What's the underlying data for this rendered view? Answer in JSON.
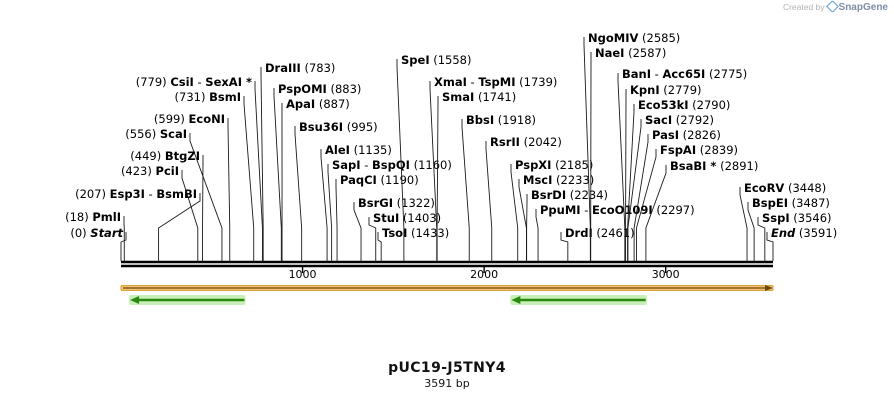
{
  "credit": {
    "prefix": "Created by",
    "brand": "SnapGene"
  },
  "plasmid": {
    "name": "pUC19-J5TNY4",
    "length_label": "3591 bp",
    "length": 3591
  },
  "colors": {
    "backbone": "#000000",
    "feature_bar": "#f5c16c",
    "feature_bar_edge": "#d9a13b",
    "arrow_fill": "#2a8a10",
    "arrow_glow": "#c9efb8"
  },
  "axis_ticks": [
    {
      "value": 1000,
      "label": "1000"
    },
    {
      "value": 2000,
      "label": "2000"
    },
    {
      "value": 3000,
      "label": "3000"
    }
  ],
  "features": [
    {
      "name": "origin-feature",
      "start": 0,
      "end": 3591,
      "dir": "fwd",
      "row": 0
    },
    {
      "name": "green-feature-1",
      "start": 50,
      "end": 680,
      "dir": "rev",
      "row": 1
    },
    {
      "name": "green-feature-2",
      "start": 2150,
      "end": 2890,
      "dir": "rev",
      "row": 1
    }
  ],
  "sites": [
    {
      "label": "Start",
      "pos": 0,
      "num": "(0)",
      "side": "left",
      "italic": true
    },
    {
      "label": "PmlI",
      "pos": 18,
      "num": "(18)",
      "side": "left"
    },
    {
      "label": "Esp3I",
      "label2": "BsmBI",
      "pos": 207,
      "num": "(207)",
      "side": "left"
    },
    {
      "label": "PciI",
      "pos": 423,
      "num": "(423)",
      "side": "left"
    },
    {
      "label": "BtgZI",
      "pos": 449,
      "num": "(449)",
      "side": "left"
    },
    {
      "label": "ScaI",
      "pos": 556,
      "num": "(556)",
      "side": "left"
    },
    {
      "label": "EcoNI",
      "pos": 599,
      "num": "(599)",
      "side": "left"
    },
    {
      "label": "BsmI",
      "pos": 731,
      "num": "(731)",
      "side": "left"
    },
    {
      "label": "CsiI",
      "label2": "SexAI *",
      "pos": 779,
      "num": "(779)",
      "side": "left"
    },
    {
      "label": "DraIII",
      "pos": 783,
      "num": "(783)",
      "side": "right"
    },
    {
      "label": "PspOMI",
      "pos": 883,
      "num": "(883)",
      "side": "right"
    },
    {
      "label": "ApaI",
      "pos": 887,
      "num": "(887)",
      "side": "right"
    },
    {
      "label": "Bsu36I",
      "pos": 995,
      "num": "(995)",
      "side": "right"
    },
    {
      "label": "AleI",
      "pos": 1135,
      "num": "(1135)",
      "side": "right"
    },
    {
      "label": "SapI",
      "label2": "BspQI",
      "pos": 1160,
      "num": "(1160)",
      "side": "right"
    },
    {
      "label": "PaqCI",
      "pos": 1190,
      "num": "(1190)",
      "side": "right"
    },
    {
      "label": "BsrGI",
      "pos": 1322,
      "num": "(1322)",
      "side": "right"
    },
    {
      "label": "StuI",
      "pos": 1403,
      "num": "(1403)",
      "side": "right"
    },
    {
      "label": "TsoI",
      "pos": 1433,
      "num": "(1433)",
      "side": "right"
    },
    {
      "label": "SpeI",
      "pos": 1558,
      "num": "(1558)",
      "side": "right"
    },
    {
      "label": "XmaI",
      "label2": "TspMI",
      "pos": 1739,
      "num": "(1739)",
      "side": "right"
    },
    {
      "label": "SmaI",
      "pos": 1741,
      "num": "(1741)",
      "side": "right"
    },
    {
      "label": "BbsI",
      "pos": 1918,
      "num": "(1918)",
      "side": "right"
    },
    {
      "label": "RsrII",
      "pos": 2042,
      "num": "(2042)",
      "side": "right"
    },
    {
      "label": "PspXI",
      "pos": 2185,
      "num": "(2185)",
      "side": "right"
    },
    {
      "label": "MscI",
      "pos": 2233,
      "num": "(2233)",
      "side": "right"
    },
    {
      "label": "BsrDI",
      "pos": 2234,
      "num": "(2234)",
      "side": "right"
    },
    {
      "label": "PpuMI",
      "label2": "EcoO109I",
      "pos": 2297,
      "num": "(2297)",
      "side": "right"
    },
    {
      "label": "DrdI",
      "pos": 2461,
      "num": "(2461)",
      "side": "right"
    },
    {
      "label": "NgoMIV",
      "pos": 2585,
      "num": "(2585)",
      "side": "right"
    },
    {
      "label": "NaeI",
      "pos": 2587,
      "num": "(2587)",
      "side": "right"
    },
    {
      "label": "BanI",
      "label2": "Acc65I",
      "pos": 2775,
      "num": "(2775)",
      "side": "right"
    },
    {
      "label": "KpnI",
      "pos": 2779,
      "num": "(2779)",
      "side": "right"
    },
    {
      "label": "Eco53kI",
      "pos": 2790,
      "num": "(2790)",
      "side": "right"
    },
    {
      "label": "SacI",
      "pos": 2792,
      "num": "(2792)",
      "side": "right"
    },
    {
      "label": "PasI",
      "pos": 2826,
      "num": "(2826)",
      "side": "right"
    },
    {
      "label": "FspAI",
      "pos": 2839,
      "num": "(2839)",
      "side": "right"
    },
    {
      "label": "BsaBI *",
      "pos": 2891,
      "num": "(2891)",
      "side": "right"
    },
    {
      "label": "EcoRV",
      "pos": 3448,
      "num": "(3448)",
      "side": "right"
    },
    {
      "label": "BspEI",
      "pos": 3487,
      "num": "(3487)",
      "side": "right"
    },
    {
      "label": "SspI",
      "pos": 3546,
      "num": "(3546)",
      "side": "right"
    },
    {
      "label": "End",
      "pos": 3591,
      "num": "(3591)",
      "side": "right",
      "italic": true
    }
  ]
}
